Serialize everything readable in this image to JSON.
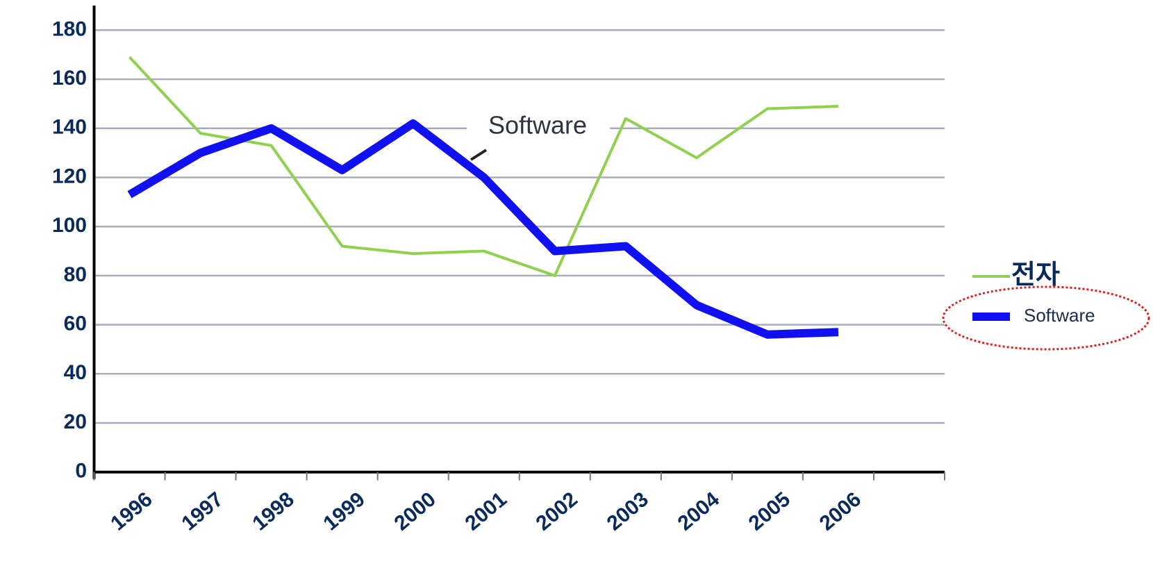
{
  "chart_data": {
    "type": "line",
    "categories": [
      "1996",
      "1997",
      "1998",
      "1999",
      "2000",
      "2001",
      "2002",
      "2003",
      "2004",
      "2005",
      "2006",
      null
    ],
    "series": [
      {
        "name": "전자",
        "color": "#8fd14f",
        "width": 4,
        "values": [
          169,
          138,
          133,
          92,
          89,
          90,
          80,
          144,
          128,
          148,
          149,
          null
        ]
      },
      {
        "name": "Software",
        "color": "#1010f0",
        "width": 12,
        "values": [
          113,
          130,
          140,
          123,
          142,
          120,
          90,
          92,
          68,
          56,
          57,
          null
        ]
      }
    ],
    "annotation": "Software",
    "ylim": [
      0,
      180
    ],
    "yticks": [
      0,
      20,
      40,
      60,
      80,
      100,
      120,
      140,
      160,
      180
    ],
    "grid": true,
    "legend": "right"
  }
}
